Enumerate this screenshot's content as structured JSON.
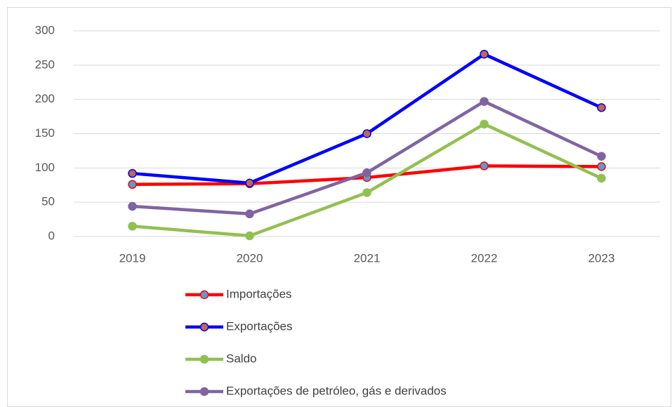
{
  "chart_data": {
    "type": "line",
    "categories": [
      "2019",
      "2020",
      "2021",
      "2022",
      "2023"
    ],
    "series": [
      {
        "name": "Importações",
        "color": "#ff0000",
        "marker_color": "#5b9bd5",
        "values": [
          76,
          77,
          86,
          103,
          102
        ]
      },
      {
        "name": "Exportações",
        "color": "#0000ff",
        "marker_color": "#c0674d",
        "values": [
          92,
          78,
          150,
          266,
          188
        ]
      },
      {
        "name": "Saldo",
        "color": "#92c050",
        "marker_color": "#92c050",
        "values": [
          15,
          1,
          64,
          164,
          85
        ]
      },
      {
        "name": "Exportações de petróleo, gás e derivados",
        "color": "#8064a2",
        "marker_color": "#8064a2",
        "values": [
          44,
          33,
          93,
          197,
          117
        ]
      }
    ],
    "ylim": [
      0,
      300
    ],
    "yticks": [
      0,
      50,
      100,
      150,
      200,
      250,
      300
    ],
    "grid": true,
    "legend": "bottom"
  }
}
